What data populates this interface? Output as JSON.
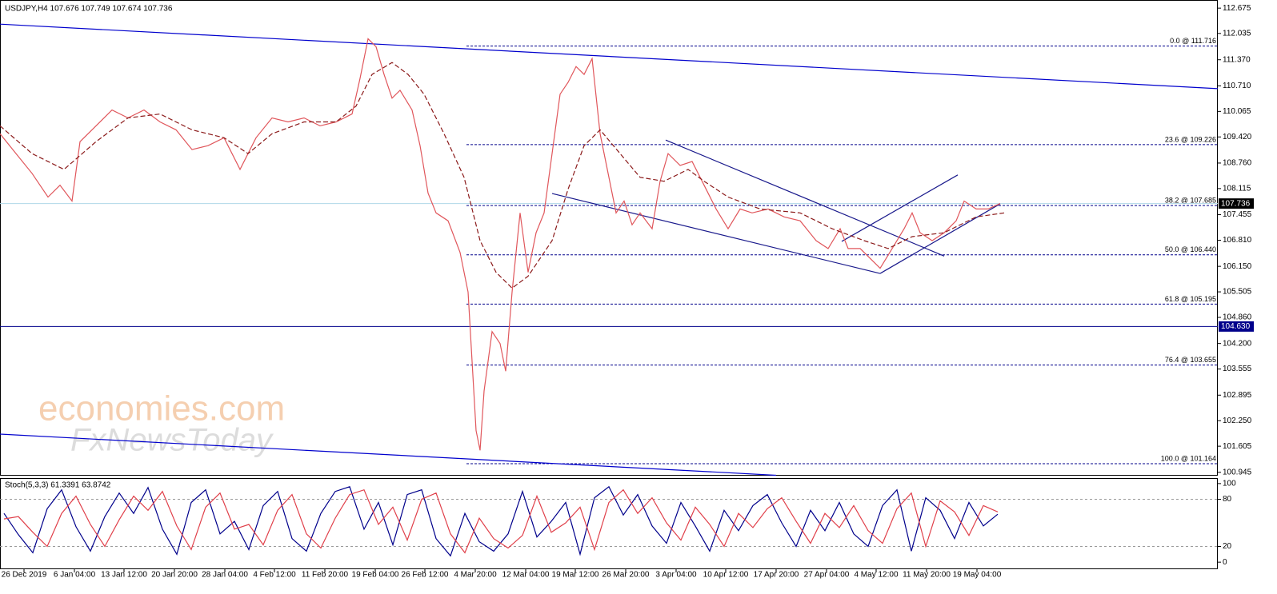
{
  "header": "USDJPY,H4  107.676 107.749 107.674 107.736",
  "watermark": [
    "economies.com",
    "FxNewsToday"
  ],
  "chart_data": [
    {
      "type": "line",
      "xlim": [
        0,
        1522
      ],
      "ylim": [
        100.86,
        112.88
      ],
      "yticks": [
        112.675,
        112.035,
        {
          "value": 111.37,
          "label": "111.370"
        },
        {
          "value": 110.71,
          "label": "110.710"
        },
        110.065,
        {
          "value": 109.42,
          "label": "109.420"
        },
        {
          "value": 108.76,
          "label": "108.760"
        },
        108.115,
        107.455,
        {
          "value": 106.81,
          "label": "106.810"
        },
        {
          "value": 106.15,
          "label": "106.150"
        },
        105.505,
        {
          "value": 104.86,
          "label": "104.860"
        },
        {
          "value": 104.2,
          "label": "104.200"
        },
        103.555,
        102.895,
        {
          "value": 102.25,
          "label": "102.250"
        },
        101.605,
        100.945
      ],
      "series": [
        {
          "color": "#e0565b",
          "x": [
            0,
            20,
            40,
            60,
            75,
            90,
            100,
            120,
            140,
            160,
            180,
            200,
            220,
            240,
            260,
            280,
            300,
            320,
            340,
            360,
            380,
            400,
            420,
            440,
            450,
            460,
            470,
            480,
            490,
            500,
            515,
            525,
            535,
            545,
            560,
            575,
            585,
            595,
            600,
            605,
            615,
            625,
            632,
            640,
            650,
            660,
            670,
            680,
            690,
            700,
            710,
            720,
            730,
            740,
            750,
            760,
            770,
            780,
            790,
            800,
            815,
            825,
            835,
            850,
            865,
            880,
            895,
            910,
            925,
            940,
            960,
            980,
            1000,
            1020,
            1035,
            1050,
            1060,
            1075,
            1090,
            1100,
            1115,
            1130,
            1140,
            1150,
            1165,
            1180,
            1195,
            1205,
            1220,
            1235,
            1250
          ],
          "values": [
            109.5,
            109.0,
            108.5,
            107.9,
            108.2,
            107.8,
            109.3,
            109.7,
            110.1,
            109.9,
            110.1,
            109.8,
            109.6,
            109.1,
            109.2,
            109.4,
            108.6,
            109.4,
            109.9,
            109.8,
            109.9,
            109.7,
            109.8,
            110.0,
            110.9,
            111.9,
            111.7,
            111.0,
            110.4,
            110.6,
            110.1,
            109.2,
            108.0,
            107.5,
            107.3,
            106.5,
            105.5,
            102.0,
            101.5,
            103.0,
            104.5,
            104.2,
            103.5,
            105.5,
            107.5,
            106.0,
            107.0,
            107.5,
            109.0,
            110.5,
            110.8,
            111.2,
            111.0,
            111.4,
            109.5,
            108.5,
            107.5,
            107.8,
            107.2,
            107.5,
            107.1,
            108.3,
            109.0,
            108.7,
            108.8,
            108.2,
            107.6,
            107.1,
            107.6,
            107.5,
            107.6,
            107.4,
            107.3,
            106.8,
            106.6,
            107.1,
            106.6,
            106.6,
            106.3,
            106.1,
            106.6,
            107.1,
            107.5,
            107.0,
            106.8,
            107.0,
            107.3,
            107.8,
            107.6,
            107.6,
            107.736
          ]
        },
        {
          "color": "#8b1a1a",
          "dashed": true,
          "x": [
            0,
            40,
            80,
            120,
            160,
            200,
            240,
            280,
            310,
            340,
            380,
            420,
            445,
            465,
            490,
            510,
            530,
            555,
            580,
            600,
            620,
            640,
            660,
            690,
            710,
            730,
            750,
            775,
            800,
            830,
            860,
            880,
            910,
            950,
            1000,
            1040,
            1080,
            1110,
            1140,
            1180,
            1220,
            1255
          ],
          "values": [
            109.7,
            109.0,
            108.6,
            109.3,
            109.9,
            110.0,
            109.6,
            109.4,
            109.0,
            109.5,
            109.8,
            109.8,
            110.2,
            111.0,
            111.3,
            111.0,
            110.5,
            109.5,
            108.4,
            106.8,
            106.0,
            105.6,
            105.9,
            106.8,
            108.1,
            109.2,
            109.6,
            109.0,
            108.4,
            108.3,
            108.6,
            108.3,
            107.9,
            107.6,
            107.5,
            107.1,
            106.8,
            106.6,
            106.9,
            107.0,
            107.4,
            107.5
          ]
        }
      ],
      "trendlines": [
        {
          "x": [
            0,
            1522
          ],
          "values": [
            112.27,
            110.64
          ],
          "color": "#0000cd"
        },
        {
          "x": [
            0,
            970
          ],
          "values": [
            101.91,
            100.87
          ],
          "color": "#0000cd"
        },
        {
          "x": [
            832,
            1180
          ],
          "values": [
            109.34,
            106.41
          ],
          "color": "#1a1a8c"
        },
        {
          "x": [
            690,
            1100
          ],
          "values": [
            107.99,
            105.97
          ],
          "color": "#1a1a8c"
        },
        {
          "x": [
            1100,
            1250
          ],
          "values": [
            105.97,
            107.73
          ],
          "color": "#1a1a8c"
        },
        {
          "x": [
            1052,
            1197
          ],
          "values": [
            106.78,
            108.46
          ],
          "color": "#1a1a8c"
        }
      ],
      "fib_from": 583,
      "fib_levels": [
        {
          "value": 111.716,
          "label": "0.0 @ 111.716"
        },
        {
          "value": 109.226,
          "label": "23.6 @ 109.226"
        },
        {
          "value": 107.685,
          "label": "38.2 @ 107.685"
        },
        {
          "value": 106.44,
          "label": "50.0 @ 106.440"
        },
        {
          "value": 105.195,
          "label": "61.8 @ 105.195"
        },
        {
          "value": 103.655,
          "label": "76.4 @ 103.655"
        },
        {
          "value": 101.164,
          "label": "100.0 @ 101.164"
        }
      ],
      "hlines": [
        {
          "value": 107.736,
          "color": "#b0d8e8",
          "box": "#000000"
        },
        {
          "value": {
            "value": 104.63,
            "label": "104.630"
          },
          "color": "#00008b",
          "box": "#00008b"
        }
      ]
    },
    {
      "type": "line",
      "title": "Stoch(5,3,3) 61.3391 63.8742",
      "xlim": [
        0,
        1522
      ],
      "ylim": [
        -9,
        107
      ],
      "yticks": [
        100,
        80,
        20,
        0
      ],
      "levels": [
        80,
        20
      ],
      "xticks": [
        {
          "value": 30,
          "label": "26 Dec 2019"
        },
        {
          "value": 93,
          "label": "6 Jan 04:00"
        },
        {
          "value": 155,
          "label": "13 Jan 12:00"
        },
        {
          "value": 218,
          "label": "20 Jan 20:00"
        },
        {
          "value": 281,
          "label": "28 Jan 04:00"
        },
        {
          "value": 343,
          "label": "4 Feb 12:00"
        },
        {
          "value": 406,
          "label": "11 Feb 20:00"
        },
        {
          "value": 469,
          "label": "19 Feb 04:00"
        },
        {
          "value": 531,
          "label": "26 Feb 12:00"
        },
        {
          "value": 594,
          "label": "4 Mar 20:00"
        },
        {
          "value": 657,
          "label": "12 Mar 04:00"
        },
        {
          "value": 719,
          "label": "19 Mar 12:00"
        },
        {
          "value": 782,
          "label": "26 Mar 20:00"
        },
        {
          "value": 845,
          "label": "3 Apr 04:00"
        },
        {
          "value": 907,
          "label": "10 Apr 12:00"
        },
        {
          "value": 970,
          "label": "17 Apr 20:00"
        },
        {
          "value": 1033,
          "label": "27 Apr 04:00"
        },
        {
          "value": 1095,
          "label": "4 May 12:00"
        },
        {
          "value": 1158,
          "label": "11 May 20:00"
        },
        {
          "value": 1221,
          "label": "19 May 04:00"
        }
      ],
      "x_start": 5,
      "x_step": 18,
      "series": [
        {
          "color": "#00008b",
          "values": [
            62,
            35,
            12,
            68,
            92,
            45,
            14,
            58,
            88,
            62,
            95,
            42,
            10,
            76,
            92,
            36,
            52,
            16,
            72,
            90,
            30,
            14,
            62,
            90,
            96,
            42,
            76,
            22,
            86,
            92,
            30,
            8,
            62,
            26,
            14,
            36,
            90,
            32,
            52,
            76,
            10,
            82,
            96,
            60,
            86,
            46,
            24,
            76,
            46,
            14,
            66,
            40,
            72,
            86,
            50,
            20,
            66,
            40,
            76,
            36,
            20,
            72,
            92,
            14,
            82,
            66,
            30,
            76,
            46,
            61
          ]
        },
        {
          "color": "#e0404a",
          "values": [
            55,
            58,
            38,
            20,
            62,
            84,
            48,
            20,
            54,
            84,
            66,
            90,
            46,
            16,
            70,
            88,
            42,
            48,
            22,
            66,
            86,
            36,
            18,
            56,
            86,
            92,
            48,
            70,
            28,
            80,
            88,
            36,
            12,
            56,
            30,
            18,
            34,
            84,
            38,
            50,
            70,
            16,
            76,
            92,
            62,
            82,
            50,
            28,
            70,
            48,
            20,
            62,
            44,
            68,
            82,
            52,
            24,
            62,
            44,
            72,
            40,
            24,
            68,
            88,
            20,
            78,
            64,
            34,
            72,
            64
          ]
        }
      ]
    }
  ]
}
